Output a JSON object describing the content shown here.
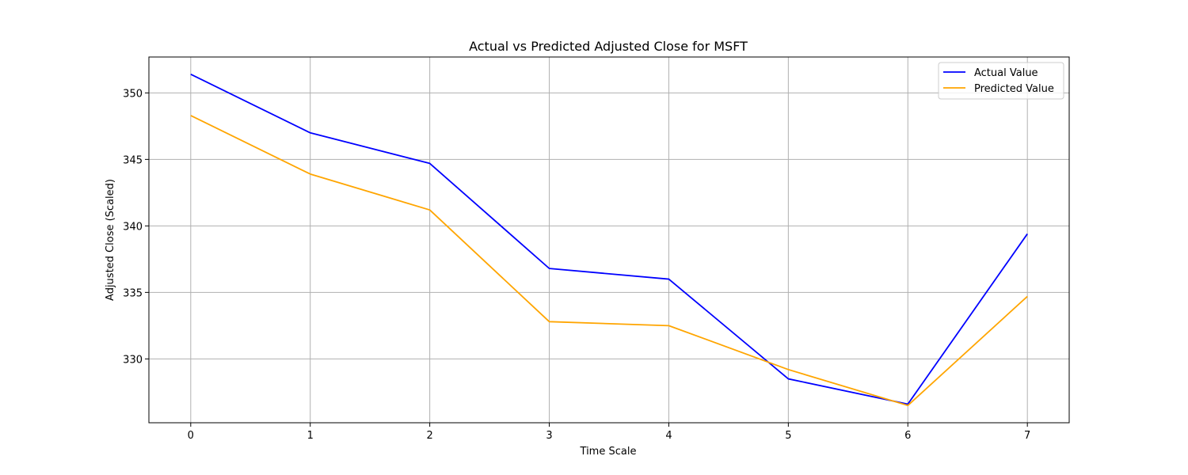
{
  "chart_data": {
    "type": "line",
    "title": "Actual vs Predicted Adjusted Close for MSFT",
    "xlabel": "Time Scale",
    "ylabel": "Adjusted Close (Scaled)",
    "x": [
      0,
      1,
      2,
      3,
      4,
      5,
      6,
      7
    ],
    "xticks": [
      "0",
      "1",
      "2",
      "3",
      "4",
      "5",
      "6",
      "7"
    ],
    "yticks": [
      330,
      335,
      340,
      345,
      350
    ],
    "xlim": [
      -0.35,
      7.35
    ],
    "ylim": [
      325.2,
      352.7
    ],
    "grid": true,
    "legend_position": "top-right",
    "series": [
      {
        "name": "Actual Value",
        "color": "#0000ff",
        "values": [
          351.4,
          347.0,
          344.7,
          336.8,
          336.0,
          328.5,
          326.6,
          339.4
        ]
      },
      {
        "name": "Predicted Value",
        "color": "#ffa500",
        "values": [
          348.3,
          343.9,
          341.2,
          332.8,
          332.5,
          329.2,
          326.5,
          334.7
        ]
      }
    ]
  }
}
